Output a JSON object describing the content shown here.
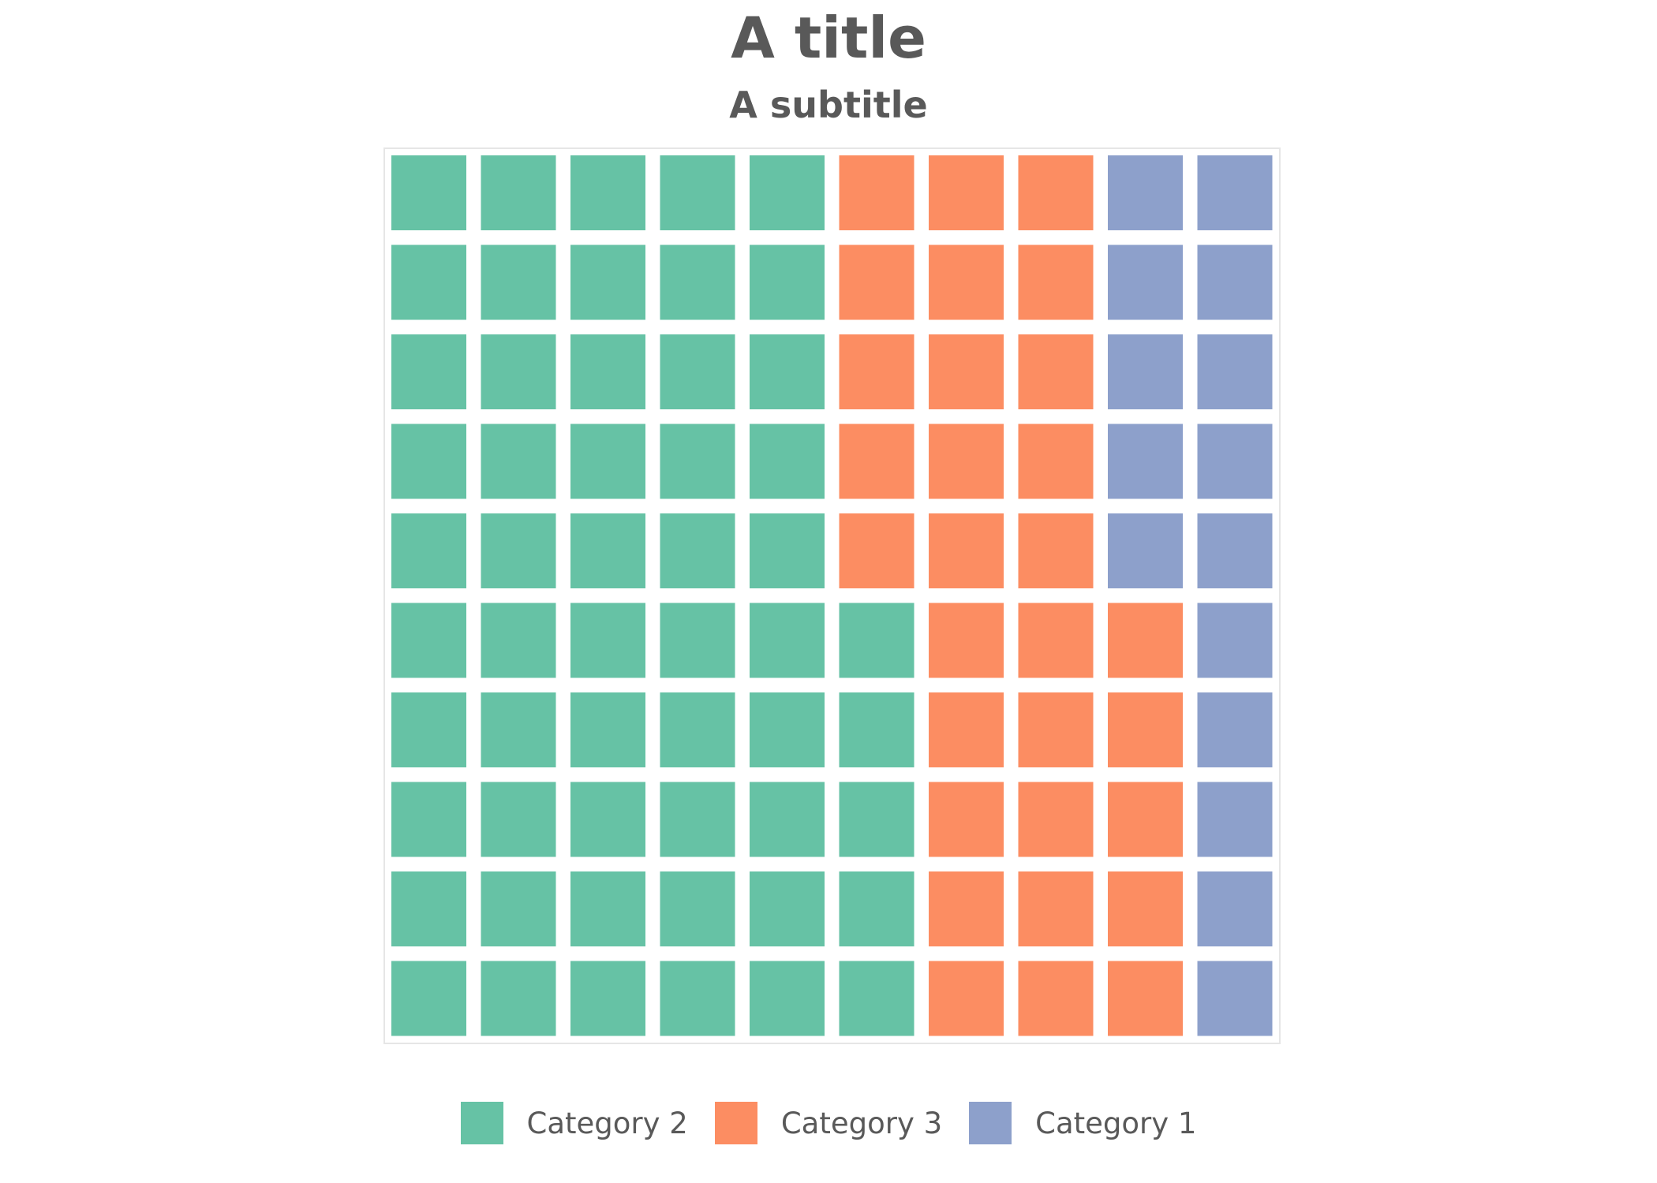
{
  "chart_data": {
    "type": "waffle",
    "title": "A title",
    "subtitle": "A subtitle",
    "rows": 10,
    "columns": 10,
    "fill_order": "column-major, bottom-to-top",
    "series": [
      {
        "name": "Category 2",
        "value": 55,
        "color": "#66c2a5"
      },
      {
        "name": "Category 3",
        "value": 30,
        "color": "#fc8d62"
      },
      {
        "name": "Category 1",
        "value": 15,
        "color": "#8da0cb"
      }
    ],
    "legend_position": "bottom"
  }
}
